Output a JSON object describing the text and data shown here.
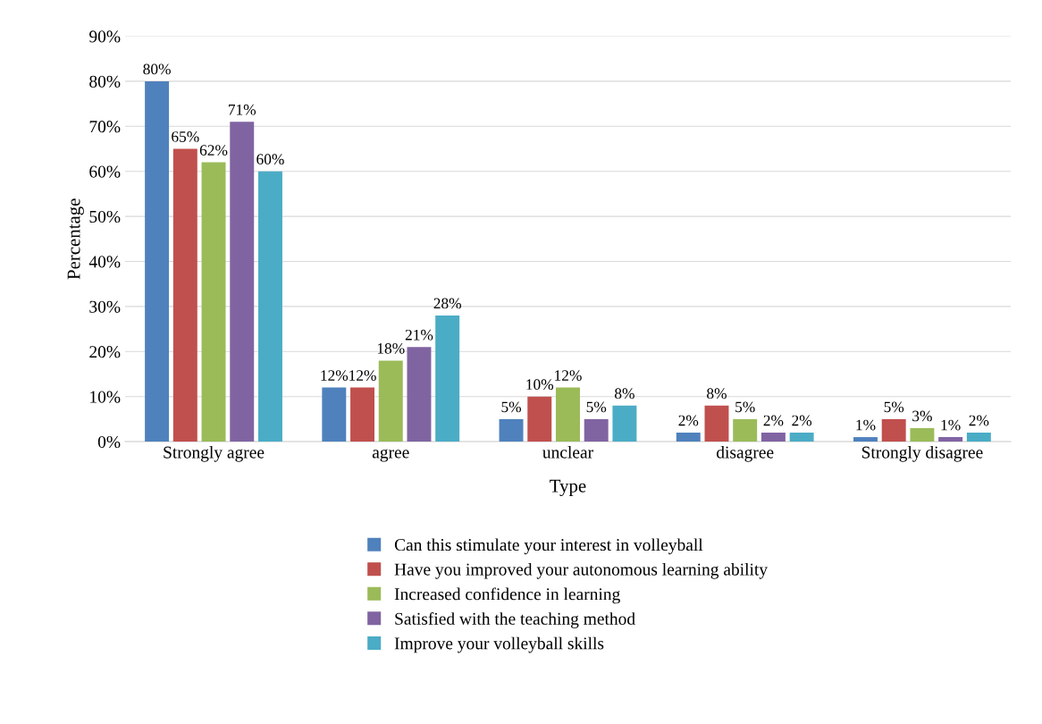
{
  "chart_data": {
    "type": "bar",
    "xlabel": "Type",
    "ylabel": "Percentage",
    "categories": [
      "Strongly agree",
      "agree",
      "unclear",
      "disagree",
      "Strongly disagree"
    ],
    "series": [
      {
        "name": "Can this stimulate your interest in volleyball",
        "color": "#4f81bd",
        "values": [
          80,
          12,
          5,
          2,
          1
        ],
        "value_labels": [
          "80%",
          "12%",
          "5%",
          "2%",
          "1%"
        ]
      },
      {
        "name": "Have you improved your autonomous learning ability",
        "color": "#c0504d",
        "values": [
          65,
          12,
          10,
          8,
          5
        ],
        "value_labels": [
          "65%",
          "12%",
          "10%",
          "8%",
          "5%"
        ]
      },
      {
        "name": "Increased confidence in learning",
        "color": "#9bbb59",
        "values": [
          62,
          18,
          12,
          5,
          3
        ],
        "value_labels": [
          "62%",
          "18%",
          "12%",
          "5%",
          "3%"
        ]
      },
      {
        "name": "Satisfied with the teaching method",
        "color": "#8064a2",
        "values": [
          71,
          21,
          5,
          2,
          1
        ],
        "value_labels": [
          "71%",
          "21%",
          "5%",
          "2%",
          "1%"
        ]
      },
      {
        "name": "Improve your volleyball skills",
        "color": "#4bacc6",
        "values": [
          60,
          28,
          8,
          2,
          2
        ],
        "value_labels": [
          "60%",
          "28%",
          "8%",
          "2%",
          "2%"
        ]
      }
    ],
    "ylim": [
      0,
      90
    ],
    "yticks": [
      {
        "value": 0,
        "label": "0%"
      },
      {
        "value": 10,
        "label": "10%"
      },
      {
        "value": 20,
        "label": "20%"
      },
      {
        "value": 30,
        "label": "30%"
      },
      {
        "value": 40,
        "label": "40%"
      },
      {
        "value": 50,
        "label": "50%"
      },
      {
        "value": 60,
        "label": "60%"
      },
      {
        "value": 70,
        "label": "70%"
      },
      {
        "value": 80,
        "label": "80%"
      },
      {
        "value": 90,
        "label": "90%"
      }
    ],
    "grid": "y",
    "legend": "bottom"
  }
}
